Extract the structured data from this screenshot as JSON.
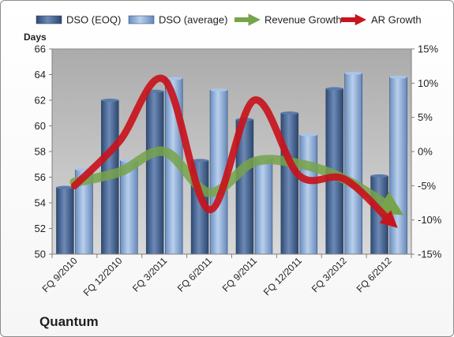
{
  "chart_data": {
    "type": "bar",
    "title": "Quantum",
    "ylabel": "Days",
    "categories": [
      "FQ 9/2010",
      "FQ 12/2010",
      "FQ 3/2011",
      "FQ 6/2011",
      "FQ 9/2011",
      "FQ 12/2011",
      "FQ 3/2012",
      "FQ 6/2012"
    ],
    "ylim": [
      50,
      66
    ],
    "y_ticks": [
      50,
      52,
      54,
      56,
      58,
      60,
      62,
      64,
      66
    ],
    "y2lim": [
      -15,
      15
    ],
    "y2_ticks": [
      "-15%",
      "-10%",
      "-5%",
      "0%",
      "5%",
      "10%",
      "15%"
    ],
    "grid": false,
    "legend_position": "top",
    "series": [
      {
        "name": "DSO (EOQ)",
        "kind": "bar",
        "axis": "left",
        "color": "#3f5f8f",
        "values": [
          55.2,
          62.0,
          62.7,
          57.3,
          60.5,
          61.0,
          62.9,
          56.1
        ]
      },
      {
        "name": "DSO (average)",
        "kind": "bar",
        "axis": "left",
        "color": "#86a8d2",
        "values": [
          56.6,
          57.3,
          63.7,
          62.8,
          57.5,
          59.3,
          64.1,
          63.8
        ]
      },
      {
        "name": "Revenue Growth",
        "kind": "line",
        "axis": "right",
        "color": "#77a34a",
        "values": [
          -4.5,
          -3.0,
          0.0,
          -6.0,
          -1.5,
          -1.8,
          -4.0,
          -8.0
        ]
      },
      {
        "name": "AR Growth",
        "kind": "line",
        "axis": "right",
        "color": "#c8141c",
        "values": [
          -5.0,
          1.5,
          10.5,
          -8.5,
          7.5,
          -3.5,
          -4.0,
          -10.0
        ]
      }
    ]
  }
}
